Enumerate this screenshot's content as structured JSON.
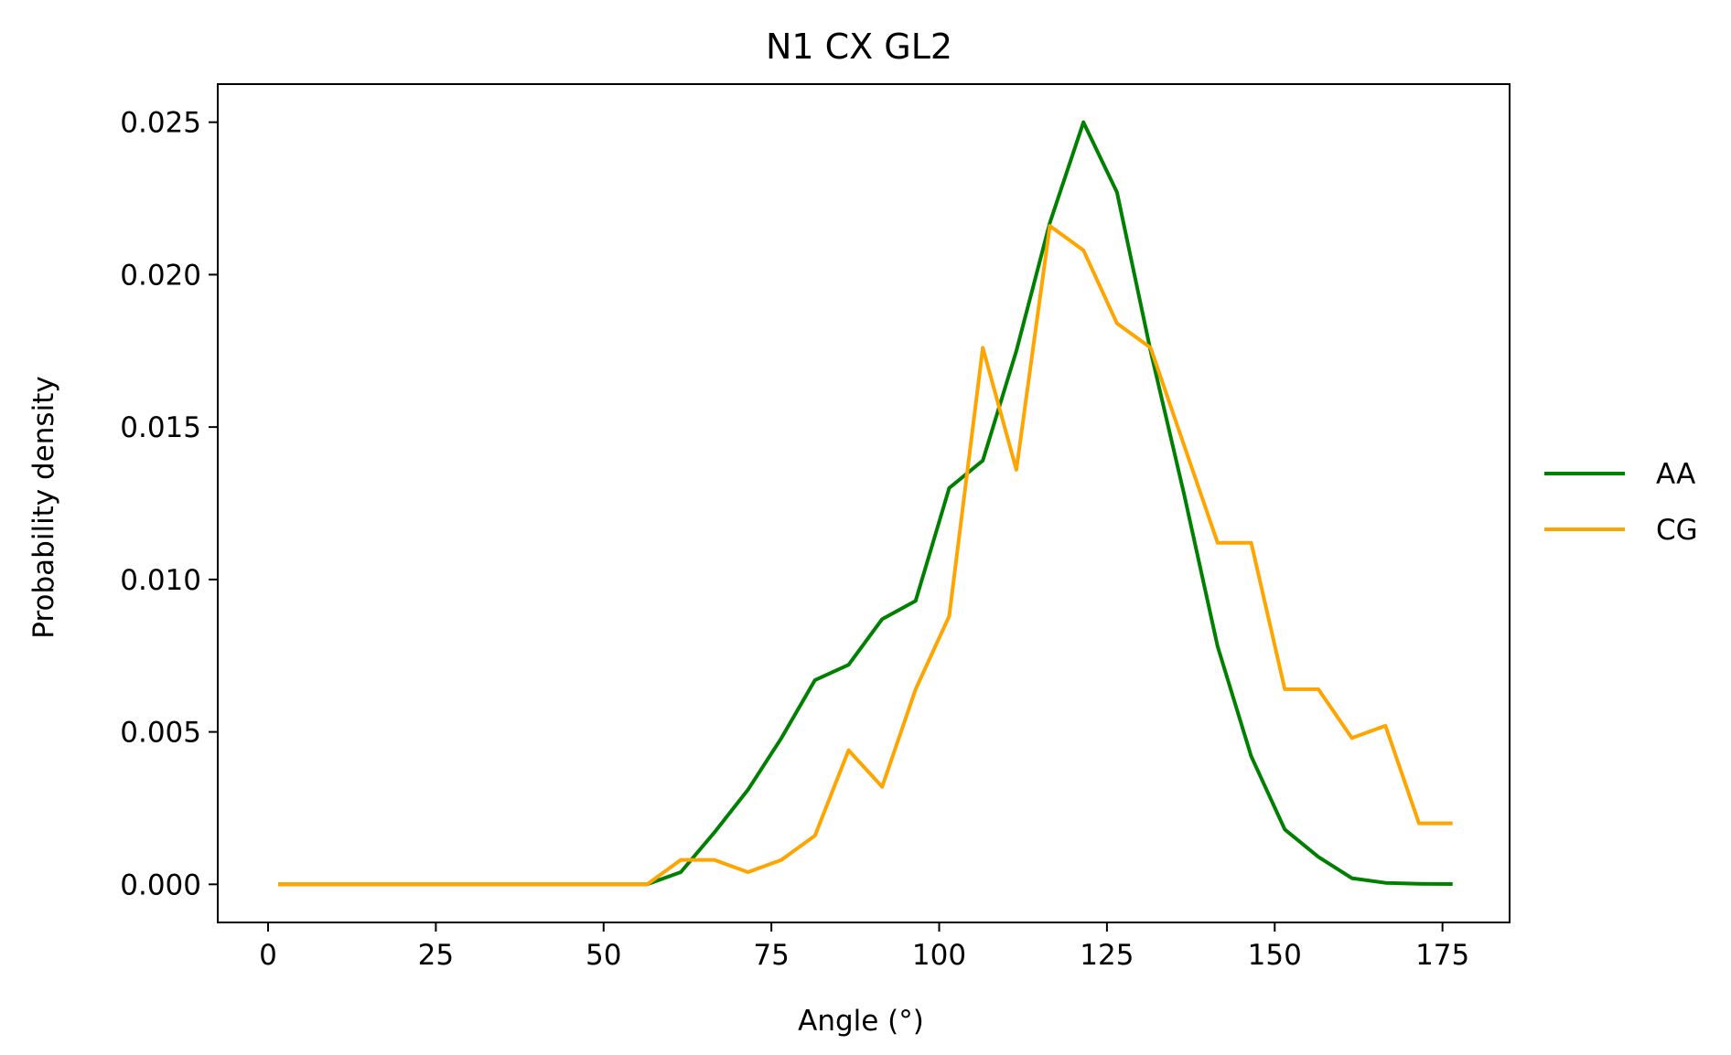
{
  "chart_data": {
    "type": "line",
    "title": "N1 CX GL2",
    "xlabel": "Angle (°)",
    "ylabel": "Probability density",
    "xlim": [
      -7.5,
      185
    ],
    "ylim": [
      -0.00125,
      0.02625
    ],
    "xticks": [
      0,
      25,
      50,
      75,
      100,
      125,
      150,
      175
    ],
    "xtick_labels": [
      "0",
      "25",
      "50",
      "75",
      "100",
      "125",
      "150",
      "175"
    ],
    "yticks": [
      0.0,
      0.005,
      0.01,
      0.015,
      0.02,
      0.025
    ],
    "ytick_labels": [
      "0.000",
      "0.005",
      "0.010",
      "0.015",
      "0.020",
      "0.025"
    ],
    "grid": false,
    "legend_position": "right, outside",
    "x": [
      1.5,
      6.5,
      11.5,
      16.5,
      21.5,
      26.5,
      31.5,
      36.5,
      41.5,
      46.5,
      51.5,
      56.5,
      61.5,
      66.5,
      71.5,
      76.5,
      81.5,
      86.5,
      91.5,
      96.5,
      101.5,
      106.5,
      111.5,
      116.5,
      121.5,
      126.5,
      131.5,
      136.5,
      141.5,
      146.5,
      151.5,
      156.5,
      161.5,
      166.5,
      171.5,
      176.5
    ],
    "series": [
      {
        "name": "AA",
        "color": "#008000",
        "values": [
          0,
          0,
          0,
          0,
          0,
          0,
          0,
          0,
          0,
          0,
          0,
          0,
          0.0004,
          0.0017,
          0.0031,
          0.0048,
          0.0067,
          0.0072,
          0.0087,
          0.0093,
          0.013,
          0.0139,
          0.0175,
          0.0217,
          0.025,
          0.0227,
          0.0175,
          0.0128,
          0.0078,
          0.0042,
          0.0018,
          0.0009,
          0.0002,
          5e-05,
          2e-05,
          1e-05
        ]
      },
      {
        "name": "CG",
        "color": "#FFA500",
        "values": [
          0,
          0,
          0,
          0,
          0,
          0,
          0,
          0,
          0,
          0,
          0,
          0,
          0.0008,
          0.0008,
          0.0004,
          0.0008,
          0.0016,
          0.0044,
          0.0032,
          0.0064,
          0.0088,
          0.0176,
          0.0136,
          0.0216,
          0.0208,
          0.0184,
          0.0176,
          0.0144,
          0.0112,
          0.0112,
          0.0064,
          0.0064,
          0.0048,
          0.0052,
          0.002,
          0.002
        ]
      }
    ]
  }
}
